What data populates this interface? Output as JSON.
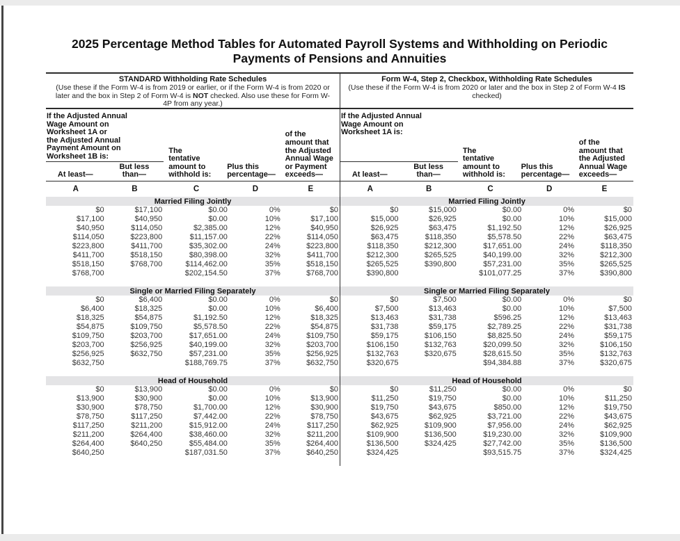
{
  "title": {
    "line1": "2025 Percentage Method Tables for Automated Payroll Systems and Withholding on Periodic",
    "line2": "Payments of Pensions and Annuities"
  },
  "columns": {
    "letters": [
      "A",
      "B",
      "C",
      "D",
      "E"
    ],
    "at_least": "At least—",
    "but_less_than": "But less\nthan—",
    "tentative": "The\ntentative\namount to\nwithhold is:",
    "plus_percentage": "Plus this\npercentage—"
  },
  "schedules": [
    {
      "heading": "STANDARD Withholding Rate Schedules",
      "note_before": "(Use these if the Form W-4 is from 2019 or earlier, or if the Form W-4 is from 2020 or later and the box in Step 2 of Form W-4 is ",
      "note_bold": "NOT",
      "note_after": " checked. Also use these for Form W-4P from any year.)",
      "wage_condition": "If the Adjusted Annual\nWage Amount on\nWorksheet 1A or\nthe Adjusted Annual\nPayment Amount on\nWorksheet 1B is:",
      "exceeds_header": "of the\namount that\nthe Adjusted\nAnnual Wage\nor Payment\nexceeds—",
      "sections": [
        {
          "title": "Married Filing Jointly",
          "rows": [
            [
              "$0",
              "$17,100",
              "$0.00",
              "0%",
              "$0"
            ],
            [
              "$17,100",
              "$40,950",
              "$0.00",
              "10%",
              "$17,100"
            ],
            [
              "$40,950",
              "$114,050",
              "$2,385.00",
              "12%",
              "$40,950"
            ],
            [
              "$114,050",
              "$223,800",
              "$11,157.00",
              "22%",
              "$114,050"
            ],
            [
              "$223,800",
              "$411,700",
              "$35,302.00",
              "24%",
              "$223,800"
            ],
            [
              "$411,700",
              "$518,150",
              "$80,398.00",
              "32%",
              "$411,700"
            ],
            [
              "$518,150",
              "$768,700",
              "$114,462.00",
              "35%",
              "$518,150"
            ],
            [
              "$768,700",
              "",
              "$202,154.50",
              "37%",
              "$768,700"
            ]
          ]
        },
        {
          "title": "Single or Married Filing Separately",
          "rows": [
            [
              "$0",
              "$6,400",
              "$0.00",
              "0%",
              "$0"
            ],
            [
              "$6,400",
              "$18,325",
              "$0.00",
              "10%",
              "$6,400"
            ],
            [
              "$18,325",
              "$54,875",
              "$1,192.50",
              "12%",
              "$18,325"
            ],
            [
              "$54,875",
              "$109,750",
              "$5,578.50",
              "22%",
              "$54,875"
            ],
            [
              "$109,750",
              "$203,700",
              "$17,651.00",
              "24%",
              "$109,750"
            ],
            [
              "$203,700",
              "$256,925",
              "$40,199.00",
              "32%",
              "$203,700"
            ],
            [
              "$256,925",
              "$632,750",
              "$57,231.00",
              "35%",
              "$256,925"
            ],
            [
              "$632,750",
              "",
              "$188,769.75",
              "37%",
              "$632,750"
            ]
          ]
        },
        {
          "title": "Head of Household",
          "rows": [
            [
              "$0",
              "$13,900",
              "$0.00",
              "0%",
              "$0"
            ],
            [
              "$13,900",
              "$30,900",
              "$0.00",
              "10%",
              "$13,900"
            ],
            [
              "$30,900",
              "$78,750",
              "$1,700.00",
              "12%",
              "$30,900"
            ],
            [
              "$78,750",
              "$117,250",
              "$7,442.00",
              "22%",
              "$78,750"
            ],
            [
              "$117,250",
              "$211,200",
              "$15,912.00",
              "24%",
              "$117,250"
            ],
            [
              "$211,200",
              "$264,400",
              "$38,460.00",
              "32%",
              "$211,200"
            ],
            [
              "$264,400",
              "$640,250",
              "$55,484.00",
              "35%",
              "$264,400"
            ],
            [
              "$640,250",
              "",
              "$187,031.50",
              "37%",
              "$640,250"
            ]
          ]
        }
      ]
    },
    {
      "heading": "Form W-4, Step 2, Checkbox, Withholding Rate Schedules",
      "note_before": "(Use these if the Form W-4 is from 2020 or later and the box in Step 2 of Form W-4 ",
      "note_bold": "IS",
      "note_after": " checked)",
      "wage_condition": "If the Adjusted Annual\nWage Amount on\nWorksheet 1A is:",
      "exceeds_header": "of the\namount that\nthe Adjusted\nAnnual Wage\nexceeds—",
      "sections": [
        {
          "title": "Married Filing Jointly",
          "rows": [
            [
              "$0",
              "$15,000",
              "$0.00",
              "0%",
              "$0"
            ],
            [
              "$15,000",
              "$26,925",
              "$0.00",
              "10%",
              "$15,000"
            ],
            [
              "$26,925",
              "$63,475",
              "$1,192.50",
              "12%",
              "$26,925"
            ],
            [
              "$63,475",
              "$118,350",
              "$5,578.50",
              "22%",
              "$63,475"
            ],
            [
              "$118,350",
              "$212,300",
              "$17,651.00",
              "24%",
              "$118,350"
            ],
            [
              "$212,300",
              "$265,525",
              "$40,199.00",
              "32%",
              "$212,300"
            ],
            [
              "$265,525",
              "$390,800",
              "$57,231.00",
              "35%",
              "$265,525"
            ],
            [
              "$390,800",
              "",
              "$101,077.25",
              "37%",
              "$390,800"
            ]
          ]
        },
        {
          "title": "Single or Married Filing Separately",
          "rows": [
            [
              "$0",
              "$7,500",
              "$0.00",
              "0%",
              "$0"
            ],
            [
              "$7,500",
              "$13,463",
              "$0.00",
              "10%",
              "$7,500"
            ],
            [
              "$13,463",
              "$31,738",
              "$596.25",
              "12%",
              "$13,463"
            ],
            [
              "$31,738",
              "$59,175",
              "$2,789.25",
              "22%",
              "$31,738"
            ],
            [
              "$59,175",
              "$106,150",
              "$8,825.50",
              "24%",
              "$59,175"
            ],
            [
              "$106,150",
              "$132,763",
              "$20,099.50",
              "32%",
              "$106,150"
            ],
            [
              "$132,763",
              "$320,675",
              "$28,615.50",
              "35%",
              "$132,763"
            ],
            [
              "$320,675",
              "",
              "$94,384.88",
              "37%",
              "$320,675"
            ]
          ]
        },
        {
          "title": "Head of Household",
          "rows": [
            [
              "$0",
              "$11,250",
              "$0.00",
              "0%",
              "$0"
            ],
            [
              "$11,250",
              "$19,750",
              "$0.00",
              "10%",
              "$11,250"
            ],
            [
              "$19,750",
              "$43,675",
              "$850.00",
              "12%",
              "$19,750"
            ],
            [
              "$43,675",
              "$62,925",
              "$3,721.00",
              "22%",
              "$43,675"
            ],
            [
              "$62,925",
              "$109,900",
              "$7,956.00",
              "24%",
              "$62,925"
            ],
            [
              "$109,900",
              "$136,500",
              "$19,230.00",
              "32%",
              "$109,900"
            ],
            [
              "$136,500",
              "$324,425",
              "$27,742.00",
              "35%",
              "$136,500"
            ],
            [
              "$324,425",
              "",
              "$93,515.75",
              "37%",
              "$324,425"
            ]
          ]
        }
      ]
    }
  ]
}
